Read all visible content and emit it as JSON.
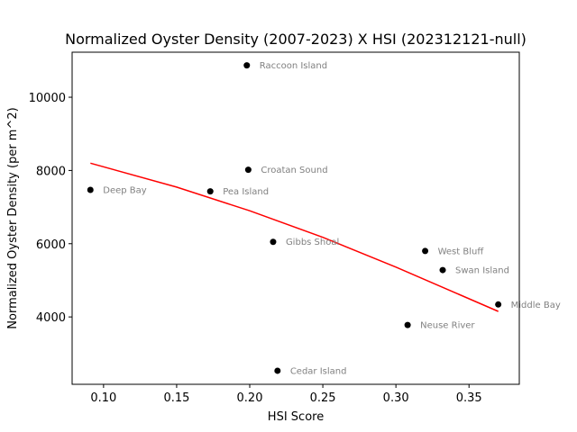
{
  "chart_data": {
    "type": "scatter",
    "title": "Normalized Oyster Density (2007-2023) X HSI (202312121-null)",
    "xlabel": "HSI Score",
    "ylabel": "Normalized Oyster Density (per m^2)",
    "xlim": [
      0.0785,
      0.3844
    ],
    "ylim": [
      2160,
      11230
    ],
    "xticks": [
      0.1,
      0.15,
      0.2,
      0.25,
      0.3,
      0.35
    ],
    "xtick_labels": [
      "0.10",
      "0.15",
      "0.20",
      "0.25",
      "0.30",
      "0.35"
    ],
    "yticks": [
      4000,
      6000,
      8000,
      10000
    ],
    "ytick_labels": [
      "4000",
      "6000",
      "8000",
      "10000"
    ],
    "grid": false,
    "points": [
      {
        "label": "Raccoon Island",
        "x": 0.198,
        "y": 10870
      },
      {
        "label": "Croatan Sound",
        "x": 0.199,
        "y": 8020
      },
      {
        "label": "Deep Bay",
        "x": 0.091,
        "y": 7470
      },
      {
        "label": "Pea Island",
        "x": 0.173,
        "y": 7430
      },
      {
        "label": "Gibbs Shoal",
        "x": 0.216,
        "y": 6050
      },
      {
        "label": "West Bluff",
        "x": 0.32,
        "y": 5800
      },
      {
        "label": "Swan Island",
        "x": 0.332,
        "y": 5280
      },
      {
        "label": "Middle Bay",
        "x": 0.37,
        "y": 4340
      },
      {
        "label": "Neuse River",
        "x": 0.308,
        "y": 3780
      },
      {
        "label": "Cedar Island",
        "x": 0.219,
        "y": 2530
      }
    ],
    "trend_line": {
      "color": "#ff0000",
      "x": [
        0.091,
        0.15,
        0.2,
        0.25,
        0.3,
        0.37
      ],
      "y": [
        8200,
        7545,
        6900,
        6175,
        5360,
        4150
      ]
    },
    "colors": {
      "points": "#000000",
      "point_labels": "#808080",
      "axes": "#000000"
    }
  }
}
